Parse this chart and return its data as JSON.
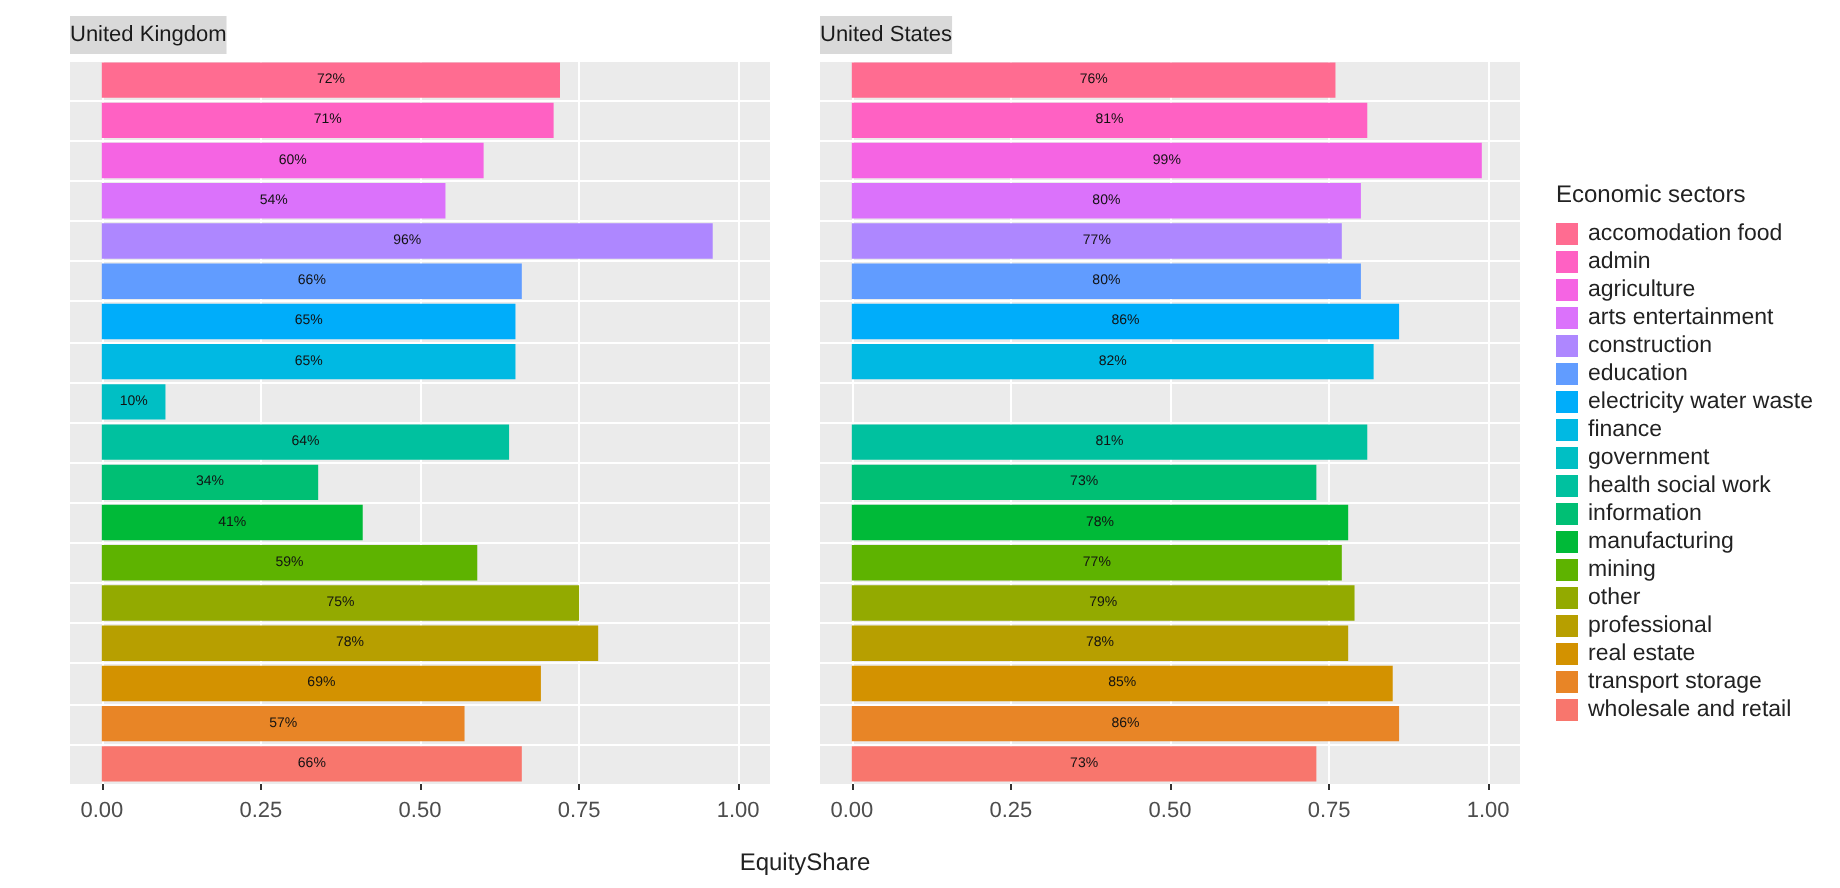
{
  "chart_data": [
    {
      "type": "bar",
      "orientation": "horizontal",
      "title": "United Kingdom",
      "xlabel": "EquityShare",
      "legend": "right",
      "categories": [
        null,
        null,
        null,
        null,
        null,
        null,
        null,
        null,
        null,
        null,
        null,
        null,
        null,
        null,
        null,
        null,
        null,
        null
      ],
      "series": [
        {
          "name": "accomodation food",
          "color": "#ff6c91",
          "values": [
            0.72,
            null,
            null,
            null,
            null,
            null,
            null,
            null,
            null,
            null,
            null,
            null,
            null,
            null,
            null,
            null,
            null,
            null
          ],
          "value_labels": [
            "72%",
            null,
            null,
            null,
            null,
            null,
            null,
            null,
            null,
            null,
            null,
            null,
            null,
            null,
            null,
            null,
            null,
            null
          ]
        },
        {
          "name": "admin",
          "color": "#ff61c3",
          "values": [
            null,
            0.71,
            null,
            null,
            null,
            null,
            null,
            null,
            null,
            null,
            null,
            null,
            null,
            null,
            null,
            null,
            null,
            null
          ],
          "value_labels": [
            null,
            "71%",
            null,
            null,
            null,
            null,
            null,
            null,
            null,
            null,
            null,
            null,
            null,
            null,
            null,
            null,
            null,
            null
          ]
        },
        {
          "name": "agriculture",
          "color": "#f564e3",
          "values": [
            null,
            null,
            0.6,
            null,
            null,
            null,
            null,
            null,
            null,
            null,
            null,
            null,
            null,
            null,
            null,
            null,
            null,
            null
          ],
          "value_labels": [
            null,
            null,
            "60%",
            null,
            null,
            null,
            null,
            null,
            null,
            null,
            null,
            null,
            null,
            null,
            null,
            null,
            null,
            null
          ]
        },
        {
          "name": "arts entertainment",
          "color": "#db72fb",
          "values": [
            null,
            null,
            null,
            0.54,
            null,
            null,
            null,
            null,
            null,
            null,
            null,
            null,
            null,
            null,
            null,
            null,
            null,
            null
          ],
          "value_labels": [
            null,
            null,
            null,
            "54%",
            null,
            null,
            null,
            null,
            null,
            null,
            null,
            null,
            null,
            null,
            null,
            null,
            null,
            null
          ]
        },
        {
          "name": "construction",
          "color": "#ae87ff",
          "values": [
            null,
            null,
            null,
            null,
            0.96,
            null,
            null,
            null,
            null,
            null,
            null,
            null,
            null,
            null,
            null,
            null,
            null,
            null
          ],
          "value_labels": [
            null,
            null,
            null,
            null,
            "96%",
            null,
            null,
            null,
            null,
            null,
            null,
            null,
            null,
            null,
            null,
            null,
            null,
            null
          ]
        },
        {
          "name": "education",
          "color": "#619cff",
          "values": [
            null,
            null,
            null,
            null,
            null,
            0.66,
            null,
            null,
            null,
            null,
            null,
            null,
            null,
            null,
            null,
            null,
            null,
            null
          ],
          "value_labels": [
            null,
            null,
            null,
            null,
            null,
            "66%",
            null,
            null,
            null,
            null,
            null,
            null,
            null,
            null,
            null,
            null,
            null,
            null
          ]
        },
        {
          "name": "electricity water waste",
          "color": "#00adfa",
          "values": [
            null,
            null,
            null,
            null,
            null,
            null,
            0.65,
            null,
            null,
            null,
            null,
            null,
            null,
            null,
            null,
            null,
            null,
            null
          ],
          "value_labels": [
            null,
            null,
            null,
            null,
            null,
            null,
            "65%",
            null,
            null,
            null,
            null,
            null,
            null,
            null,
            null,
            null,
            null,
            null
          ]
        },
        {
          "name": "finance",
          "color": "#00b9e3",
          "values": [
            null,
            null,
            null,
            null,
            null,
            null,
            null,
            0.65,
            null,
            null,
            null,
            null,
            null,
            null,
            null,
            null,
            null,
            null
          ],
          "value_labels": [
            null,
            null,
            null,
            null,
            null,
            null,
            null,
            "65%",
            null,
            null,
            null,
            null,
            null,
            null,
            null,
            null,
            null,
            null
          ]
        },
        {
          "name": "government",
          "color": "#00bfc4",
          "values": [
            null,
            null,
            null,
            null,
            null,
            null,
            null,
            null,
            0.1,
            null,
            null,
            null,
            null,
            null,
            null,
            null,
            null,
            null
          ],
          "value_labels": [
            null,
            null,
            null,
            null,
            null,
            null,
            null,
            null,
            "10%",
            null,
            null,
            null,
            null,
            null,
            null,
            null,
            null,
            null
          ]
        },
        {
          "name": "health social work",
          "color": "#00c19f",
          "values": [
            null,
            null,
            null,
            null,
            null,
            null,
            null,
            null,
            null,
            0.64,
            null,
            null,
            null,
            null,
            null,
            null,
            null,
            null
          ],
          "value_labels": [
            null,
            null,
            null,
            null,
            null,
            null,
            null,
            null,
            null,
            "64%",
            null,
            null,
            null,
            null,
            null,
            null,
            null,
            null
          ]
        },
        {
          "name": "information",
          "color": "#00bf74",
          "values": [
            null,
            null,
            null,
            null,
            null,
            null,
            null,
            null,
            null,
            null,
            0.34,
            null,
            null,
            null,
            null,
            null,
            null,
            null
          ],
          "value_labels": [
            null,
            null,
            null,
            null,
            null,
            null,
            null,
            null,
            null,
            null,
            "34%",
            null,
            null,
            null,
            null,
            null,
            null,
            null
          ]
        },
        {
          "name": "manufacturing",
          "color": "#00ba38",
          "values": [
            null,
            null,
            null,
            null,
            null,
            null,
            null,
            null,
            null,
            null,
            null,
            0.41,
            null,
            null,
            null,
            null,
            null,
            null
          ],
          "value_labels": [
            null,
            null,
            null,
            null,
            null,
            null,
            null,
            null,
            null,
            null,
            null,
            "41%",
            null,
            null,
            null,
            null,
            null,
            null
          ]
        },
        {
          "name": "mining",
          "color": "#5eb300",
          "values": [
            null,
            null,
            null,
            null,
            null,
            null,
            null,
            null,
            null,
            null,
            null,
            null,
            0.59,
            null,
            null,
            null,
            null,
            null
          ],
          "value_labels": [
            null,
            null,
            null,
            null,
            null,
            null,
            null,
            null,
            null,
            null,
            null,
            null,
            "59%",
            null,
            null,
            null,
            null,
            null
          ]
        },
        {
          "name": "other",
          "color": "#93aa00",
          "values": [
            null,
            null,
            null,
            null,
            null,
            null,
            null,
            null,
            null,
            null,
            null,
            null,
            null,
            0.75,
            null,
            null,
            null,
            null
          ],
          "value_labels": [
            null,
            null,
            null,
            null,
            null,
            null,
            null,
            null,
            null,
            null,
            null,
            null,
            null,
            "75%",
            null,
            null,
            null,
            null
          ]
        },
        {
          "name": "professional",
          "color": "#b79f00",
          "values": [
            null,
            null,
            null,
            null,
            null,
            null,
            null,
            null,
            null,
            null,
            null,
            null,
            null,
            null,
            0.78,
            null,
            null,
            null
          ],
          "value_labels": [
            null,
            null,
            null,
            null,
            null,
            null,
            null,
            null,
            null,
            null,
            null,
            null,
            null,
            null,
            "78%",
            null,
            null,
            null
          ]
        },
        {
          "name": "real estate",
          "color": "#d39200",
          "values": [
            null,
            null,
            null,
            null,
            null,
            null,
            null,
            null,
            null,
            null,
            null,
            null,
            null,
            null,
            null,
            0.69,
            null,
            null
          ],
          "value_labels": [
            null,
            null,
            null,
            null,
            null,
            null,
            null,
            null,
            null,
            null,
            null,
            null,
            null,
            null,
            null,
            "69%",
            null,
            null
          ]
        },
        {
          "name": "transport storage",
          "color": "#e88526",
          "values": [
            null,
            null,
            null,
            null,
            null,
            null,
            null,
            null,
            null,
            null,
            null,
            null,
            null,
            null,
            null,
            null,
            0.57,
            null
          ],
          "value_labels": [
            null,
            null,
            null,
            null,
            null,
            null,
            null,
            null,
            null,
            null,
            null,
            null,
            null,
            null,
            null,
            null,
            "57%",
            null
          ]
        },
        {
          "name": "wholesale and retail",
          "color": "#f8766d",
          "values": [
            null,
            null,
            null,
            null,
            null,
            null,
            null,
            null,
            null,
            null,
            null,
            null,
            null,
            null,
            null,
            null,
            null,
            0.66
          ],
          "value_labels": [
            null,
            null,
            null,
            null,
            null,
            null,
            null,
            null,
            null,
            null,
            null,
            null,
            null,
            null,
            null,
            null,
            null,
            "66%"
          ]
        }
      ],
      "xlim": [
        -0.05,
        1.05
      ],
      "xticks": [
        {
          "value": 0,
          "label": "0.00"
        },
        {
          "value": 0.25,
          "label": "0.25"
        },
        {
          "value": 0.5,
          "label": "0.50"
        },
        {
          "value": 0.75,
          "label": "0.75"
        },
        {
          "value": 1,
          "label": "1.00"
        }
      ],
      "tick_labels": "x",
      "grid": true
    },
    {
      "type": "bar",
      "orientation": "horizontal",
      "title": "United States",
      "legend_title": "Economic sectors",
      "legend": "right",
      "categories": [
        null,
        null,
        null,
        null,
        null,
        null,
        null,
        null,
        null,
        null,
        null,
        null,
        null,
        null,
        null,
        null,
        null,
        null
      ],
      "series": [
        {
          "name": "accomodation food",
          "color": "#ff6c91",
          "values": [
            0.76,
            null,
            null,
            null,
            null,
            null,
            null,
            null,
            null,
            null,
            null,
            null,
            null,
            null,
            null,
            null,
            null,
            null
          ],
          "value_labels": [
            "76%",
            null,
            null,
            null,
            null,
            null,
            null,
            null,
            null,
            null,
            null,
            null,
            null,
            null,
            null,
            null,
            null,
            null
          ]
        },
        {
          "name": "admin",
          "color": "#ff61c3",
          "values": [
            null,
            0.81,
            null,
            null,
            null,
            null,
            null,
            null,
            null,
            null,
            null,
            null,
            null,
            null,
            null,
            null,
            null,
            null
          ],
          "value_labels": [
            null,
            "81%",
            null,
            null,
            null,
            null,
            null,
            null,
            null,
            null,
            null,
            null,
            null,
            null,
            null,
            null,
            null,
            null
          ]
        },
        {
          "name": "agriculture",
          "color": "#f564e3",
          "values": [
            null,
            null,
            0.99,
            null,
            null,
            null,
            null,
            null,
            null,
            null,
            null,
            null,
            null,
            null,
            null,
            null,
            null,
            null
          ],
          "value_labels": [
            null,
            null,
            "99%",
            null,
            null,
            null,
            null,
            null,
            null,
            null,
            null,
            null,
            null,
            null,
            null,
            null,
            null,
            null
          ]
        },
        {
          "name": "arts entertainment",
          "color": "#db72fb",
          "values": [
            null,
            null,
            null,
            0.8,
            null,
            null,
            null,
            null,
            null,
            null,
            null,
            null,
            null,
            null,
            null,
            null,
            null,
            null
          ],
          "value_labels": [
            null,
            null,
            null,
            "80%",
            null,
            null,
            null,
            null,
            null,
            null,
            null,
            null,
            null,
            null,
            null,
            null,
            null,
            null
          ]
        },
        {
          "name": "construction",
          "color": "#ae87ff",
          "values": [
            null,
            null,
            null,
            null,
            0.77,
            null,
            null,
            null,
            null,
            null,
            null,
            null,
            null,
            null,
            null,
            null,
            null,
            null
          ],
          "value_labels": [
            null,
            null,
            null,
            null,
            "77%",
            null,
            null,
            null,
            null,
            null,
            null,
            null,
            null,
            null,
            null,
            null,
            null,
            null
          ]
        },
        {
          "name": "education",
          "color": "#619cff",
          "values": [
            null,
            null,
            null,
            null,
            null,
            0.8,
            null,
            null,
            null,
            null,
            null,
            null,
            null,
            null,
            null,
            null,
            null,
            null
          ],
          "value_labels": [
            null,
            null,
            null,
            null,
            null,
            "80%",
            null,
            null,
            null,
            null,
            null,
            null,
            null,
            null,
            null,
            null,
            null,
            null
          ]
        },
        {
          "name": "electricity water waste",
          "color": "#00adfa",
          "values": [
            null,
            null,
            null,
            null,
            null,
            null,
            0.86,
            null,
            null,
            null,
            null,
            null,
            null,
            null,
            null,
            null,
            null,
            null
          ],
          "value_labels": [
            null,
            null,
            null,
            null,
            null,
            null,
            "86%",
            null,
            null,
            null,
            null,
            null,
            null,
            null,
            null,
            null,
            null,
            null
          ]
        },
        {
          "name": "finance",
          "color": "#00b9e3",
          "values": [
            null,
            null,
            null,
            null,
            null,
            null,
            null,
            0.82,
            null,
            null,
            null,
            null,
            null,
            null,
            null,
            null,
            null,
            null
          ],
          "value_labels": [
            null,
            null,
            null,
            null,
            null,
            null,
            null,
            "82%",
            null,
            null,
            null,
            null,
            null,
            null,
            null,
            null,
            null,
            null
          ]
        },
        {
          "name": "government",
          "color": "#00bfc4",
          "values": [
            null,
            null,
            null,
            null,
            null,
            null,
            null,
            null,
            null,
            null,
            null,
            null,
            null,
            null,
            null,
            null,
            null,
            null
          ]
        },
        {
          "name": "health social work",
          "color": "#00c19f",
          "values": [
            null,
            null,
            null,
            null,
            null,
            null,
            null,
            null,
            null,
            0.81,
            null,
            null,
            null,
            null,
            null,
            null,
            null,
            null
          ],
          "value_labels": [
            null,
            null,
            null,
            null,
            null,
            null,
            null,
            null,
            null,
            "81%",
            null,
            null,
            null,
            null,
            null,
            null,
            null,
            null
          ]
        },
        {
          "name": "information",
          "color": "#00bf74",
          "values": [
            null,
            null,
            null,
            null,
            null,
            null,
            null,
            null,
            null,
            null,
            0.73,
            null,
            null,
            null,
            null,
            null,
            null,
            null
          ],
          "value_labels": [
            null,
            null,
            null,
            null,
            null,
            null,
            null,
            null,
            null,
            null,
            "73%",
            null,
            null,
            null,
            null,
            null,
            null,
            null
          ]
        },
        {
          "name": "manufacturing",
          "color": "#00ba38",
          "values": [
            null,
            null,
            null,
            null,
            null,
            null,
            null,
            null,
            null,
            null,
            null,
            0.78,
            null,
            null,
            null,
            null,
            null,
            null
          ],
          "value_labels": [
            null,
            null,
            null,
            null,
            null,
            null,
            null,
            null,
            null,
            null,
            null,
            "78%",
            null,
            null,
            null,
            null,
            null,
            null
          ]
        },
        {
          "name": "mining",
          "color": "#5eb300",
          "values": [
            null,
            null,
            null,
            null,
            null,
            null,
            null,
            null,
            null,
            null,
            null,
            null,
            0.77,
            null,
            null,
            null,
            null,
            null
          ],
          "value_labels": [
            null,
            null,
            null,
            null,
            null,
            null,
            null,
            null,
            null,
            null,
            null,
            null,
            "77%",
            null,
            null,
            null,
            null,
            null
          ]
        },
        {
          "name": "other",
          "color": "#93aa00",
          "values": [
            null,
            null,
            null,
            null,
            null,
            null,
            null,
            null,
            null,
            null,
            null,
            null,
            null,
            0.79,
            null,
            null,
            null,
            null
          ],
          "value_labels": [
            null,
            null,
            null,
            null,
            null,
            null,
            null,
            null,
            null,
            null,
            null,
            null,
            null,
            "79%",
            null,
            null,
            null,
            null
          ]
        },
        {
          "name": "professional",
          "color": "#b79f00",
          "values": [
            null,
            null,
            null,
            null,
            null,
            null,
            null,
            null,
            null,
            null,
            null,
            null,
            null,
            null,
            0.78,
            null,
            null,
            null
          ],
          "value_labels": [
            null,
            null,
            null,
            null,
            null,
            null,
            null,
            null,
            null,
            null,
            null,
            null,
            null,
            null,
            "78%",
            null,
            null,
            null
          ]
        },
        {
          "name": "real estate",
          "color": "#d39200",
          "values": [
            null,
            null,
            null,
            null,
            null,
            null,
            null,
            null,
            null,
            null,
            null,
            null,
            null,
            null,
            null,
            0.85,
            null,
            null
          ],
          "value_labels": [
            null,
            null,
            null,
            null,
            null,
            null,
            null,
            null,
            null,
            null,
            null,
            null,
            null,
            null,
            null,
            "85%",
            null,
            null
          ]
        },
        {
          "name": "transport storage",
          "color": "#e88526",
          "values": [
            null,
            null,
            null,
            null,
            null,
            null,
            null,
            null,
            null,
            null,
            null,
            null,
            null,
            null,
            null,
            null,
            0.86,
            null
          ],
          "value_labels": [
            null,
            null,
            null,
            null,
            null,
            null,
            null,
            null,
            null,
            null,
            null,
            null,
            null,
            null,
            null,
            null,
            "86%",
            null
          ]
        },
        {
          "name": "wholesale and retail",
          "color": "#f8766d",
          "values": [
            null,
            null,
            null,
            null,
            null,
            null,
            null,
            null,
            null,
            null,
            null,
            null,
            null,
            null,
            null,
            null,
            null,
            0.73
          ],
          "value_labels": [
            null,
            null,
            null,
            null,
            null,
            null,
            null,
            null,
            null,
            null,
            null,
            null,
            null,
            null,
            null,
            null,
            null,
            "73%"
          ]
        }
      ],
      "xlim": [
        -0.05,
        1.05
      ],
      "xticks": [
        {
          "value": 0,
          "label": "0.00"
        },
        {
          "value": 0.25,
          "label": "0.25"
        },
        {
          "value": 0.5,
          "label": "0.50"
        },
        {
          "value": 0.75,
          "label": "0.75"
        },
        {
          "value": 1,
          "label": "1.00"
        }
      ],
      "tick_labels": "x",
      "grid": true
    }
  ]
}
